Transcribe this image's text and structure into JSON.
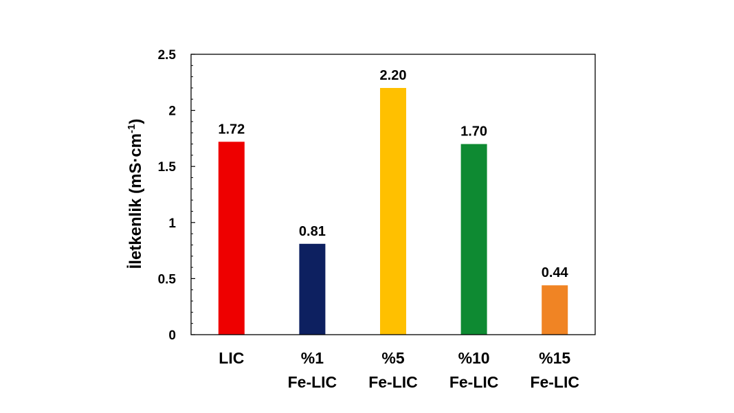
{
  "chart_data": {
    "type": "bar",
    "categories": [
      [
        "LIC"
      ],
      [
        "%1",
        "Fe-LIC"
      ],
      [
        "%5",
        "Fe-LIC"
      ],
      [
        "%10",
        "Fe-LIC"
      ],
      [
        "%15",
        "Fe-LIC"
      ]
    ],
    "values": [
      1.72,
      0.81,
      2.2,
      1.7,
      0.44
    ],
    "data_labels": [
      "1.72",
      "0.81",
      "2.20",
      "1.70",
      "0.44"
    ],
    "colors": [
      "#ee0000",
      "#0d2060",
      "#ffc000",
      "#0e8a32",
      "#f08424"
    ],
    "ylabel": "İletkenlik (mS·cm",
    "ylabel_superscript": "-1",
    "ylabel_close": ")",
    "ylim": [
      0,
      2.5
    ],
    "yticks": [
      0,
      0.5,
      1,
      1.5,
      2,
      2.5
    ],
    "ytick_labels": [
      "0",
      "0.5",
      "1",
      "1.5",
      "2",
      "2.5"
    ],
    "grid": false,
    "legend": "none"
  }
}
